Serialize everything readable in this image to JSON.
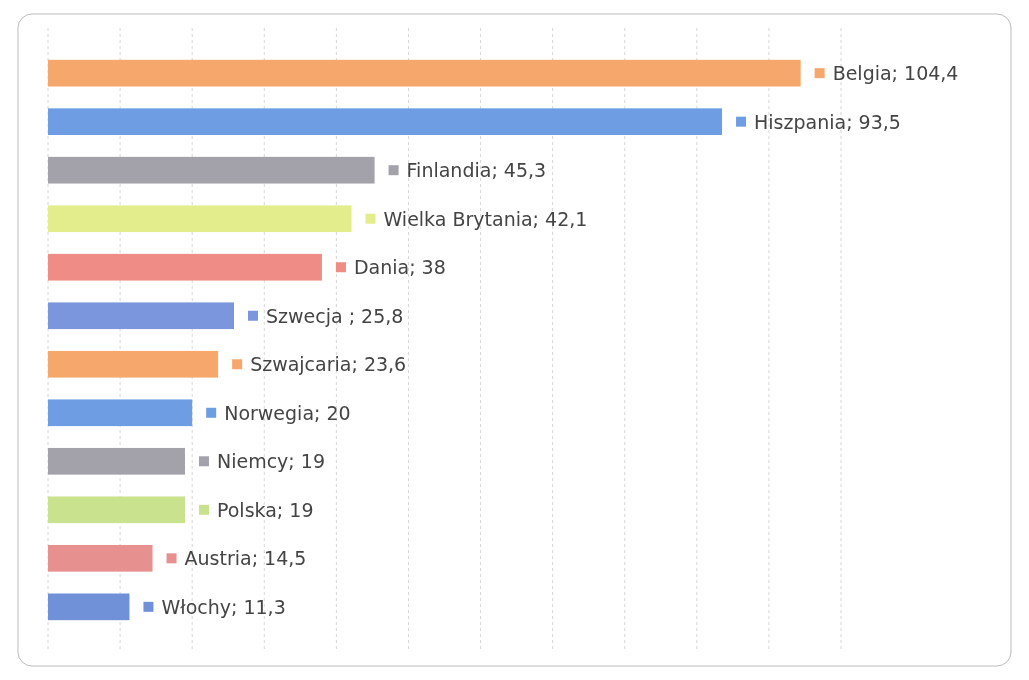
{
  "chart_data": {
    "type": "bar",
    "orientation": "horizontal",
    "categories": [
      null,
      null,
      null,
      null,
      null,
      null,
      null,
      null,
      null,
      null,
      null,
      null
    ],
    "values": [
      104.4,
      93.5,
      45.3,
      42.1,
      38,
      25.8,
      23.6,
      20,
      19,
      19,
      14.5,
      11.3
    ],
    "colors": [
      "#f5a76c",
      "#6f9de3",
      "#a3a2aa",
      "#e3ed8c",
      "#f08c86",
      "#7c96dd",
      "#f5a76c",
      "#6f9de3",
      "#a3a2aa",
      "#c9e28e",
      "#e79090",
      "#7091d8"
    ],
    "value_labels": [
      "Belgia; 104,4",
      "Hiszpania; 93,5",
      "Finlandia; 45,3",
      "Wielka Brytania; 42,1",
      "Dania; 38",
      "Szwecja ; 25,8",
      "Szwajcaria; 23,6",
      "Norwegia; 20",
      "Niemcy; 19",
      "Polska; 19",
      "Austria; 14,5",
      "Włochy; 11,3"
    ],
    "xlim": [
      0,
      110
    ],
    "xticks": [
      {
        "value": 0,
        "label": null
      },
      {
        "value": 10,
        "label": null
      },
      {
        "value": 20,
        "label": null
      },
      {
        "value": 30,
        "label": null
      },
      {
        "value": 40,
        "label": null
      },
      {
        "value": 50,
        "label": null
      },
      {
        "value": 60,
        "label": null
      },
      {
        "value": 70,
        "label": null
      },
      {
        "value": 80,
        "label": null
      },
      {
        "value": 90,
        "label": null
      },
      {
        "value": 100,
        "label": null
      },
      {
        "value": 110,
        "label": null
      }
    ],
    "grid": "x"
  }
}
